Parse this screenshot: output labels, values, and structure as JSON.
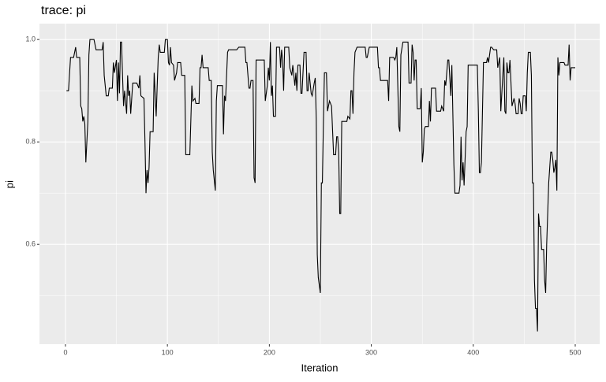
{
  "chart_data": {
    "type": "line",
    "title": "trace: pi",
    "x_label": "Iteration",
    "y_label": "pi",
    "color": "#000000",
    "x": [
      1,
      3,
      5,
      8,
      10,
      11,
      14,
      15,
      16,
      17,
      18,
      19,
      20,
      22,
      23,
      24,
      28,
      30,
      36,
      37,
      38,
      40,
      42,
      43,
      46,
      47,
      48,
      50,
      51,
      52,
      53,
      54,
      55,
      56,
      57,
      58,
      60,
      61,
      62,
      63,
      64,
      66,
      70,
      72,
      73,
      74,
      77,
      78,
      79,
      80,
      81,
      82,
      83,
      86,
      87,
      89,
      90,
      91,
      92,
      93,
      97,
      98,
      100,
      101,
      102,
      103,
      104,
      106,
      107,
      109,
      110,
      113,
      114,
      117,
      118,
      122,
      124,
      125,
      127,
      128,
      131,
      132,
      133,
      134,
      135,
      140,
      141,
      143,
      144,
      145,
      147,
      148,
      149,
      154,
      155,
      156,
      157,
      159,
      160,
      168,
      170,
      176,
      177,
      178,
      180,
      181,
      182,
      184,
      185,
      186,
      187,
      195,
      196,
      198,
      199,
      200,
      201,
      202,
      203,
      204,
      206,
      207,
      210,
      211,
      212,
      213,
      214,
      215,
      219,
      220,
      222,
      223,
      225,
      226,
      227,
      228,
      230,
      231,
      232,
      234,
      236,
      237,
      238,
      239,
      241,
      242,
      244,
      245,
      246,
      247,
      248,
      250,
      251,
      252,
      253,
      254,
      256,
      257,
      259,
      261,
      263,
      265,
      266,
      267,
      268,
      269,
      270,
      271,
      276,
      277,
      279,
      280,
      281,
      282,
      283,
      284,
      286,
      294,
      295,
      296,
      298,
      306,
      307,
      308,
      309,
      316,
      317,
      318,
      322,
      323,
      324,
      325,
      327,
      328,
      329,
      331,
      336,
      337,
      339,
      340,
      341,
      342,
      343,
      344,
      345,
      348,
      349,
      350,
      351,
      352,
      353,
      356,
      357,
      358,
      359,
      363,
      364,
      368,
      369,
      371,
      372,
      373,
      375,
      376,
      378,
      379,
      381,
      382,
      386,
      387,
      388,
      389,
      390,
      391,
      393,
      394,
      395,
      404,
      405,
      406,
      407,
      408,
      410,
      413,
      414,
      415,
      417,
      418,
      420,
      423,
      424,
      426,
      427,
      429,
      430,
      431,
      432,
      433,
      434,
      435,
      436,
      438,
      440,
      441,
      442,
      444,
      445,
      446,
      447,
      448,
      449,
      451,
      452,
      453,
      454,
      456,
      457,
      458,
      459,
      460,
      461,
      462,
      463,
      464,
      465,
      466,
      467,
      469,
      470,
      471,
      472,
      474,
      476,
      477,
      478,
      479,
      480,
      481,
      482,
      483,
      484,
      485,
      489,
      490,
      493,
      494,
      495,
      496,
      500
    ],
    "values": [
      0.9,
      0.9,
      0.965,
      0.965,
      0.985,
      0.965,
      0.965,
      0.87,
      0.865,
      0.84,
      0.85,
      0.835,
      0.76,
      0.84,
      0.97,
      1.0,
      1.0,
      0.98,
      0.98,
      0.995,
      0.93,
      0.89,
      0.89,
      0.905,
      0.905,
      0.955,
      0.935,
      0.96,
      0.88,
      0.955,
      0.895,
      0.995,
      0.995,
      0.93,
      0.87,
      0.9,
      0.855,
      0.93,
      0.89,
      0.9,
      0.855,
      0.915,
      0.915,
      0.905,
      0.93,
      0.89,
      0.885,
      0.8,
      0.7,
      0.745,
      0.72,
      0.75,
      0.82,
      0.82,
      0.935,
      0.85,
      0.91,
      0.965,
      0.99,
      0.975,
      0.975,
      1.0,
      1.0,
      0.955,
      0.95,
      0.985,
      0.955,
      0.95,
      0.92,
      0.935,
      0.955,
      0.955,
      0.93,
      0.93,
      0.775,
      0.775,
      0.91,
      0.88,
      0.885,
      0.875,
      0.875,
      0.945,
      0.945,
      0.97,
      0.945,
      0.945,
      0.92,
      0.92,
      0.78,
      0.745,
      0.705,
      0.88,
      0.91,
      0.91,
      0.815,
      0.89,
      0.88,
      0.975,
      0.98,
      0.98,
      0.985,
      0.985,
      0.955,
      0.955,
      0.905,
      0.905,
      0.92,
      0.92,
      0.73,
      0.72,
      0.96,
      0.96,
      0.88,
      0.91,
      0.945,
      0.92,
      0.995,
      0.89,
      0.91,
      0.85,
      0.85,
      0.985,
      0.985,
      0.945,
      0.98,
      0.96,
      0.9,
      0.985,
      0.985,
      0.945,
      0.93,
      0.95,
      0.91,
      0.935,
      0.9,
      0.95,
      0.95,
      0.895,
      0.895,
      0.975,
      0.975,
      0.9,
      0.9,
      0.935,
      0.895,
      0.89,
      0.915,
      0.925,
      0.845,
      0.58,
      0.535,
      0.505,
      0.72,
      0.72,
      0.835,
      0.935,
      0.935,
      0.86,
      0.88,
      0.87,
      0.775,
      0.775,
      0.81,
      0.81,
      0.78,
      0.66,
      0.66,
      0.84,
      0.84,
      0.85,
      0.845,
      0.9,
      0.9,
      0.855,
      0.935,
      0.975,
      0.985,
      0.985,
      0.965,
      0.965,
      0.985,
      0.985,
      0.945,
      0.945,
      0.92,
      0.92,
      0.88,
      0.965,
      0.965,
      0.96,
      0.965,
      0.985,
      0.83,
      0.82,
      0.97,
      0.995,
      0.995,
      0.915,
      0.915,
      0.99,
      0.975,
      0.92,
      0.96,
      0.96,
      0.865,
      0.865,
      0.905,
      0.76,
      0.78,
      0.825,
      0.83,
      0.83,
      0.88,
      0.84,
      0.905,
      0.905,
      0.86,
      0.86,
      0.87,
      0.86,
      0.92,
      0.91,
      0.96,
      0.96,
      0.89,
      0.95,
      0.755,
      0.7,
      0.7,
      0.715,
      0.81,
      0.725,
      0.76,
      0.715,
      0.82,
      0.83,
      0.95,
      0.95,
      0.86,
      0.74,
      0.74,
      0.76,
      0.955,
      0.955,
      0.965,
      0.955,
      0.985,
      0.985,
      0.98,
      0.98,
      0.945,
      0.965,
      0.86,
      0.93,
      0.965,
      0.86,
      0.855,
      0.955,
      0.935,
      0.935,
      0.96,
      0.87,
      0.885,
      0.875,
      0.855,
      0.855,
      0.885,
      0.875,
      0.855,
      0.855,
      0.89,
      0.89,
      0.86,
      0.935,
      0.975,
      0.975,
      0.93,
      0.72,
      0.72,
      0.53,
      0.475,
      0.475,
      0.43,
      0.66,
      0.635,
      0.635,
      0.59,
      0.59,
      0.53,
      0.505,
      0.6,
      0.72,
      0.78,
      0.78,
      0.765,
      0.74,
      0.75,
      0.765,
      0.705,
      0.965,
      0.93,
      0.955,
      0.955,
      0.95,
      0.95,
      0.99,
      0.92,
      0.945,
      0.945
    ],
    "xlim": [
      -25.5,
      524
    ],
    "ylim": [
      0.405,
      1.031
    ],
    "xticks": [
      0,
      100,
      200,
      300,
      400,
      500
    ],
    "yticks": [
      0.6,
      0.8,
      {
        "value": 1,
        "label": "1.0"
      }
    ],
    "grid": true
  }
}
